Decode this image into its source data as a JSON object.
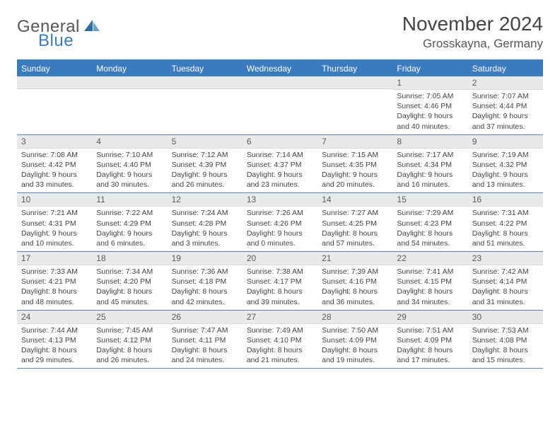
{
  "brand": {
    "general": "General",
    "blue": "Blue"
  },
  "title": "November 2024",
  "location": "Grosskayna, Germany",
  "colors": {
    "header_bg": "#3b7bbf",
    "header_text": "#ffffff",
    "daynum_bg": "#e7e9eb",
    "daynum_text": "#5a5a5a",
    "body_text": "#444444",
    "rule": "#5b7fa6",
    "page_bg": "#ffffff"
  },
  "fonts": {
    "title_size": 28,
    "location_size": 17,
    "dayheader_size": 12,
    "daynum_size": 12,
    "body_size": 10.5
  },
  "day_names": [
    "Sunday",
    "Monday",
    "Tuesday",
    "Wednesday",
    "Thursday",
    "Friday",
    "Saturday"
  ],
  "weeks": [
    [
      {
        "n": "",
        "sr": "",
        "ss": "",
        "dl": ""
      },
      {
        "n": "",
        "sr": "",
        "ss": "",
        "dl": ""
      },
      {
        "n": "",
        "sr": "",
        "ss": "",
        "dl": ""
      },
      {
        "n": "",
        "sr": "",
        "ss": "",
        "dl": ""
      },
      {
        "n": "",
        "sr": "",
        "ss": "",
        "dl": ""
      },
      {
        "n": "1",
        "sr": "Sunrise: 7:05 AM",
        "ss": "Sunset: 4:46 PM",
        "dl": "Daylight: 9 hours and 40 minutes."
      },
      {
        "n": "2",
        "sr": "Sunrise: 7:07 AM",
        "ss": "Sunset: 4:44 PM",
        "dl": "Daylight: 9 hours and 37 minutes."
      }
    ],
    [
      {
        "n": "3",
        "sr": "Sunrise: 7:08 AM",
        "ss": "Sunset: 4:42 PM",
        "dl": "Daylight: 9 hours and 33 minutes."
      },
      {
        "n": "4",
        "sr": "Sunrise: 7:10 AM",
        "ss": "Sunset: 4:40 PM",
        "dl": "Daylight: 9 hours and 30 minutes."
      },
      {
        "n": "5",
        "sr": "Sunrise: 7:12 AM",
        "ss": "Sunset: 4:39 PM",
        "dl": "Daylight: 9 hours and 26 minutes."
      },
      {
        "n": "6",
        "sr": "Sunrise: 7:14 AM",
        "ss": "Sunset: 4:37 PM",
        "dl": "Daylight: 9 hours and 23 minutes."
      },
      {
        "n": "7",
        "sr": "Sunrise: 7:15 AM",
        "ss": "Sunset: 4:35 PM",
        "dl": "Daylight: 9 hours and 20 minutes."
      },
      {
        "n": "8",
        "sr": "Sunrise: 7:17 AM",
        "ss": "Sunset: 4:34 PM",
        "dl": "Daylight: 9 hours and 16 minutes."
      },
      {
        "n": "9",
        "sr": "Sunrise: 7:19 AM",
        "ss": "Sunset: 4:32 PM",
        "dl": "Daylight: 9 hours and 13 minutes."
      }
    ],
    [
      {
        "n": "10",
        "sr": "Sunrise: 7:21 AM",
        "ss": "Sunset: 4:31 PM",
        "dl": "Daylight: 9 hours and 10 minutes."
      },
      {
        "n": "11",
        "sr": "Sunrise: 7:22 AM",
        "ss": "Sunset: 4:29 PM",
        "dl": "Daylight: 9 hours and 6 minutes."
      },
      {
        "n": "12",
        "sr": "Sunrise: 7:24 AM",
        "ss": "Sunset: 4:28 PM",
        "dl": "Daylight: 9 hours and 3 minutes."
      },
      {
        "n": "13",
        "sr": "Sunrise: 7:26 AM",
        "ss": "Sunset: 4:26 PM",
        "dl": "Daylight: 9 hours and 0 minutes."
      },
      {
        "n": "14",
        "sr": "Sunrise: 7:27 AM",
        "ss": "Sunset: 4:25 PM",
        "dl": "Daylight: 8 hours and 57 minutes."
      },
      {
        "n": "15",
        "sr": "Sunrise: 7:29 AM",
        "ss": "Sunset: 4:23 PM",
        "dl": "Daylight: 8 hours and 54 minutes."
      },
      {
        "n": "16",
        "sr": "Sunrise: 7:31 AM",
        "ss": "Sunset: 4:22 PM",
        "dl": "Daylight: 8 hours and 51 minutes."
      }
    ],
    [
      {
        "n": "17",
        "sr": "Sunrise: 7:33 AM",
        "ss": "Sunset: 4:21 PM",
        "dl": "Daylight: 8 hours and 48 minutes."
      },
      {
        "n": "18",
        "sr": "Sunrise: 7:34 AM",
        "ss": "Sunset: 4:20 PM",
        "dl": "Daylight: 8 hours and 45 minutes."
      },
      {
        "n": "19",
        "sr": "Sunrise: 7:36 AM",
        "ss": "Sunset: 4:18 PM",
        "dl": "Daylight: 8 hours and 42 minutes."
      },
      {
        "n": "20",
        "sr": "Sunrise: 7:38 AM",
        "ss": "Sunset: 4:17 PM",
        "dl": "Daylight: 8 hours and 39 minutes."
      },
      {
        "n": "21",
        "sr": "Sunrise: 7:39 AM",
        "ss": "Sunset: 4:16 PM",
        "dl": "Daylight: 8 hours and 36 minutes."
      },
      {
        "n": "22",
        "sr": "Sunrise: 7:41 AM",
        "ss": "Sunset: 4:15 PM",
        "dl": "Daylight: 8 hours and 34 minutes."
      },
      {
        "n": "23",
        "sr": "Sunrise: 7:42 AM",
        "ss": "Sunset: 4:14 PM",
        "dl": "Daylight: 8 hours and 31 minutes."
      }
    ],
    [
      {
        "n": "24",
        "sr": "Sunrise: 7:44 AM",
        "ss": "Sunset: 4:13 PM",
        "dl": "Daylight: 8 hours and 29 minutes."
      },
      {
        "n": "25",
        "sr": "Sunrise: 7:45 AM",
        "ss": "Sunset: 4:12 PM",
        "dl": "Daylight: 8 hours and 26 minutes."
      },
      {
        "n": "26",
        "sr": "Sunrise: 7:47 AM",
        "ss": "Sunset: 4:11 PM",
        "dl": "Daylight: 8 hours and 24 minutes."
      },
      {
        "n": "27",
        "sr": "Sunrise: 7:49 AM",
        "ss": "Sunset: 4:10 PM",
        "dl": "Daylight: 8 hours and 21 minutes."
      },
      {
        "n": "28",
        "sr": "Sunrise: 7:50 AM",
        "ss": "Sunset: 4:09 PM",
        "dl": "Daylight: 8 hours and 19 minutes."
      },
      {
        "n": "29",
        "sr": "Sunrise: 7:51 AM",
        "ss": "Sunset: 4:09 PM",
        "dl": "Daylight: 8 hours and 17 minutes."
      },
      {
        "n": "30",
        "sr": "Sunrise: 7:53 AM",
        "ss": "Sunset: 4:08 PM",
        "dl": "Daylight: 8 hours and 15 minutes."
      }
    ]
  ]
}
